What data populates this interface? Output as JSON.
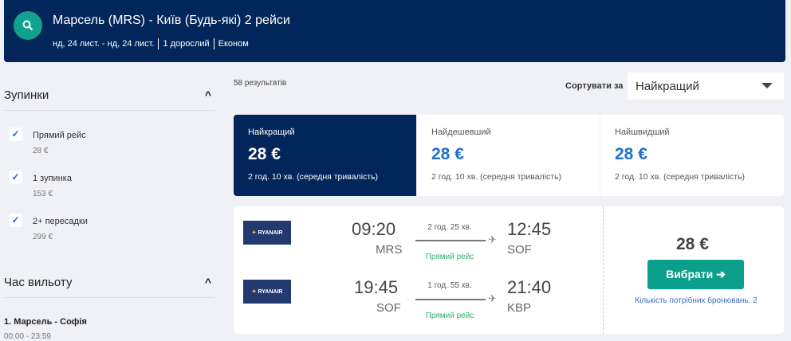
{
  "header": {
    "title": "Марсель (MRS) - Київ (Будь-які) 2 рейси",
    "dates": "нд, 24 лист. - нд, 24 лист.",
    "passengers": "1 дорослий",
    "cabin": "Економ"
  },
  "filters": {
    "stops": {
      "title": "Зупинки",
      "options": [
        {
          "label": "Прямий рейс",
          "price": "28 €",
          "checked": true
        },
        {
          "label": "1 зупинка",
          "price": "153 €",
          "checked": true
        },
        {
          "label": "2+ пересадки",
          "price": "299 €",
          "checked": true
        }
      ]
    },
    "departure": {
      "title": "Час вильоту",
      "leg": "1. Марсель - Софія",
      "range": "00:00 - 23:59"
    }
  },
  "results": {
    "count": "58 результатів",
    "sort_label": "Сортувати за",
    "sort_value": "Найкращий"
  },
  "tabs": [
    {
      "label": "Найкращий",
      "price": "28 €",
      "duration": "2 год. 10 хв. (середня тривалість)"
    },
    {
      "label": "Найдешевший",
      "price": "28 €",
      "duration": "2 год. 10 хв. (середня тривалість)"
    },
    {
      "label": "Найшвидший",
      "price": "28 €",
      "duration": "2 год. 10 хв. (середня тривалість)"
    }
  ],
  "card": {
    "legs": [
      {
        "airline": "RYANAIR",
        "dep_time": "09:20",
        "dep_code": "MRS",
        "duration": "2 год. 25 хв.",
        "type": "Прямий рейс",
        "arr_time": "12:45",
        "arr_code": "SOF"
      },
      {
        "airline": "RYANAIR",
        "dep_time": "19:45",
        "dep_code": "SOF",
        "duration": "1 год. 55 хв.",
        "type": "Прямий рейс",
        "arr_time": "21:40",
        "arr_code": "KBP"
      }
    ],
    "price": "28 €",
    "select_label": "Вибрати ➔",
    "bookings": "Кількість потрібних бронювань: 2"
  },
  "colors": {
    "navy": "#03265a",
    "accent": "#0ba08c",
    "blue": "#1e6fd0"
  }
}
